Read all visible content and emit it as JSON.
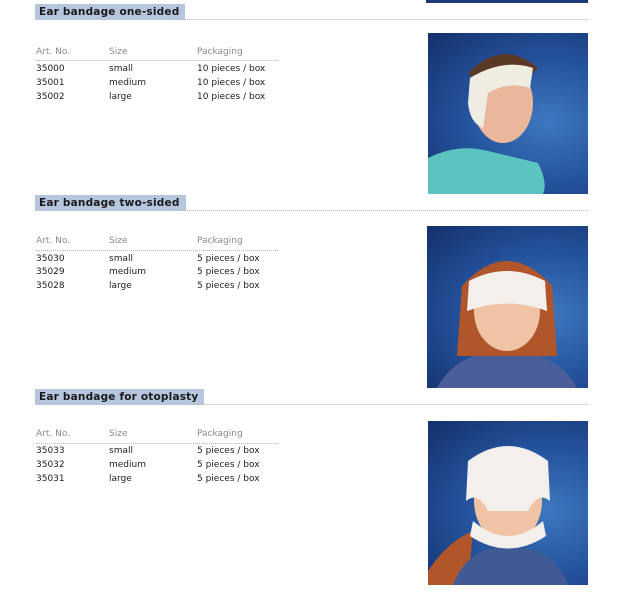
{
  "columns": {
    "art": "Art. No.",
    "size": "Size",
    "packaging": "Packaging"
  },
  "sections": [
    {
      "title": "Ear bandage one-sided",
      "rows": [
        {
          "art": "35000",
          "size": "small",
          "packaging": "10 pieces / box"
        },
        {
          "art": "35001",
          "size": "medium",
          "packaging": "10 pieces / box"
        },
        {
          "art": "35002",
          "size": "large",
          "packaging": "10 pieces / box"
        }
      ]
    },
    {
      "title": "Ear bandage two-sided",
      "rows": [
        {
          "art": "35030",
          "size": "small",
          "packaging": "5 pieces / box"
        },
        {
          "art": "35029",
          "size": "medium",
          "packaging": "5 pieces / box"
        },
        {
          "art": "35028",
          "size": "large",
          "packaging": "5 pieces / box"
        }
      ]
    },
    {
      "title": "Ear bandage for otoplasty",
      "rows": [
        {
          "art": "35033",
          "size": "small",
          "packaging": "5 pieces / box"
        },
        {
          "art": "35032",
          "size": "medium",
          "packaging": "5 pieces / box"
        },
        {
          "art": "35031",
          "size": "large",
          "packaging": "5 pieces / box"
        }
      ]
    }
  ]
}
